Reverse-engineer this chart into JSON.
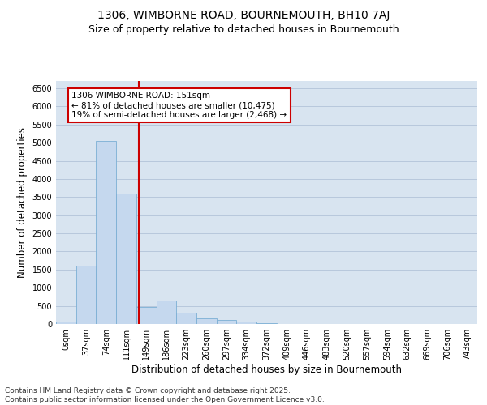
{
  "title": "1306, WIMBORNE ROAD, BOURNEMOUTH, BH10 7AJ",
  "subtitle": "Size of property relative to detached houses in Bournemouth",
  "xlabel": "Distribution of detached houses by size in Bournemouth",
  "ylabel": "Number of detached properties",
  "bin_labels": [
    "0sqm",
    "37sqm",
    "74sqm",
    "111sqm",
    "149sqm",
    "186sqm",
    "223sqm",
    "260sqm",
    "297sqm",
    "334sqm",
    "372sqm",
    "409sqm",
    "446sqm",
    "483sqm",
    "520sqm",
    "557sqm",
    "594sqm",
    "632sqm",
    "669sqm",
    "706sqm",
    "743sqm"
  ],
  "bar_values": [
    75,
    1600,
    5050,
    3600,
    480,
    650,
    310,
    165,
    110,
    65,
    20,
    5,
    2,
    1,
    0,
    0,
    0,
    0,
    0,
    0,
    0
  ],
  "bar_color": "#c5d8ee",
  "bar_edge_color": "#7bafd4",
  "vline_x": 3.62,
  "vline_color": "#cc0000",
  "annotation_text": "1306 WIMBORNE ROAD: 151sqm\n← 81% of detached houses are smaller (10,475)\n19% of semi-detached houses are larger (2,468) →",
  "annotation_box_color": "#ffffff",
  "annotation_box_edge": "#cc0000",
  "ylim": [
    0,
    6700
  ],
  "yticks": [
    0,
    500,
    1000,
    1500,
    2000,
    2500,
    3000,
    3500,
    4000,
    4500,
    5000,
    5500,
    6000,
    6500
  ],
  "grid_color": "#b8c8dc",
  "background_color": "#d8e4f0",
  "footer": "Contains HM Land Registry data © Crown copyright and database right 2025.\nContains public sector information licensed under the Open Government Licence v3.0.",
  "title_fontsize": 10,
  "subtitle_fontsize": 9,
  "axis_label_fontsize": 8.5,
  "tick_fontsize": 7,
  "footer_fontsize": 6.5,
  "ann_fontsize": 7.5
}
